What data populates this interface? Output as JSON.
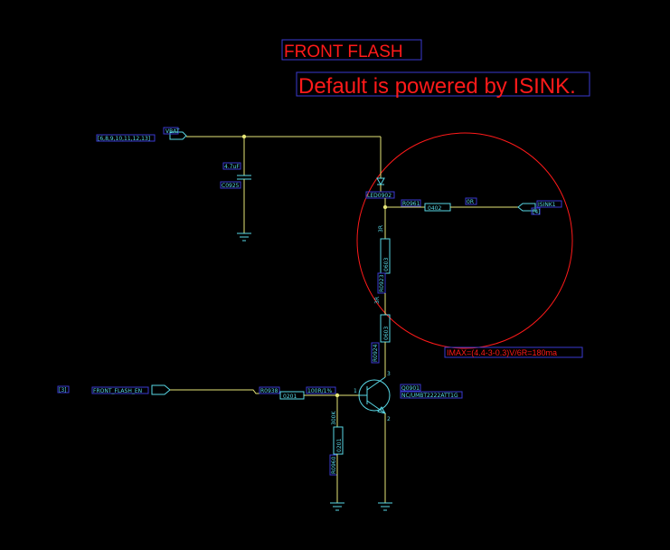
{
  "notes": {
    "title": "FRONT FLASH",
    "subtitle": "Default is powered by ISINK.",
    "current_formula": "IMAX=(4.4-3-0.3)V/6R=180ma"
  },
  "nets": {
    "vbat": "VBAT",
    "vbat_pins": "[6,8,9,10,11,12,13]",
    "isink": "ISINK1",
    "isink_pin": "[4]",
    "flash_en": "FRONT_FLASH_EN",
    "flash_en_pin": "[3]"
  },
  "parts": {
    "c0925_value": "4.7uF",
    "c0925_ref": "C0925",
    "led_ref": "LED0902",
    "r0961_ref": "R0961",
    "r0961_pkg": "0402",
    "r0961_value": "0R",
    "r_top_value": "3R",
    "r_top_pkg": "0603",
    "r_top_ref": "R0923",
    "r_bot_value": "3R",
    "r_bot_pkg": "0603",
    "r_bot_ref": "R0924",
    "r0938_ref": "R0938",
    "r0938_pkg": "0201",
    "r0938_value": "100R/1%",
    "r0960_value": "300K",
    "r0960_pkg": "0201",
    "r0960_ref": "R0960",
    "q_ref": "Q0901",
    "q_part": "NC/UMBT2222ATT1G",
    "q_pin_base": "1",
    "q_pin_collector": "3",
    "q_pin_emitter": "2"
  },
  "colors": {
    "background": "#000000",
    "wire": "#e6e678",
    "component": "#59d8e6",
    "annotation": "#ff1a1a",
    "label_box": "#3a3ad0"
  }
}
